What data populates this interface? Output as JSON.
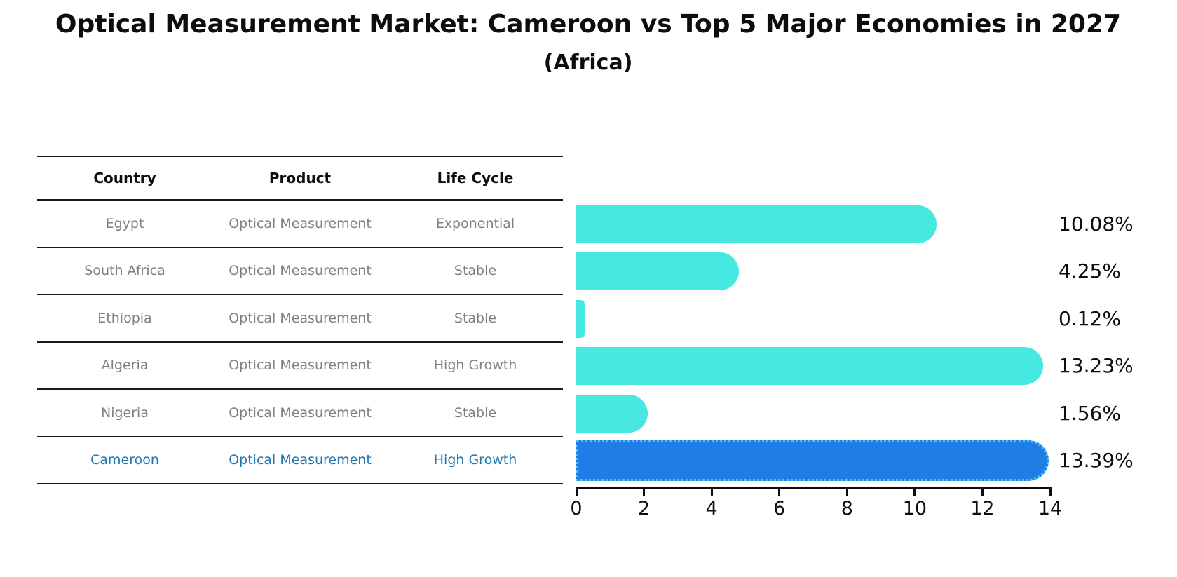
{
  "title": "Optical Measurement Market: Cameroon vs Top 5 Major Economies in 2027",
  "subtitle": "(Africa)",
  "colors": {
    "bar": "#46e8e0",
    "highlight_bar": "#1e7ee6",
    "highlight_border": "#55c0f0",
    "row_text": "#7f7f7f",
    "highlight_text": "#1f77b4",
    "rule": "#1a1a1a"
  },
  "table": {
    "headers": [
      "Country",
      "Product",
      "Life Cycle"
    ],
    "rows": [
      {
        "country": "Egypt",
        "product": "Optical Measurement",
        "life_cycle": "Exponential",
        "highlight": false
      },
      {
        "country": "South Africa",
        "product": "Optical Measurement",
        "life_cycle": "Stable",
        "highlight": false
      },
      {
        "country": "Ethiopia",
        "product": "Optical Measurement",
        "life_cycle": "Stable",
        "highlight": false
      },
      {
        "country": "Algeria",
        "product": "Optical Measurement",
        "life_cycle": "High Growth",
        "highlight": false
      },
      {
        "country": "Nigeria",
        "product": "Optical Measurement",
        "life_cycle": "Stable",
        "highlight": false
      },
      {
        "country": "Cameroon",
        "product": "Optical Measurement",
        "life_cycle": "High Growth",
        "highlight": true
      }
    ]
  },
  "chart_data": {
    "type": "bar",
    "orientation": "horizontal",
    "title": "Optical Measurement Market: Cameroon vs Top 5 Major Economies in 2027 (Africa)",
    "categories": [
      "Egypt",
      "South Africa",
      "Ethiopia",
      "Algeria",
      "Nigeria",
      "Cameroon"
    ],
    "values": [
      10.08,
      4.25,
      0.12,
      13.23,
      1.56,
      13.39
    ],
    "value_labels": [
      "10.08%",
      "4.25%",
      "0.12%",
      "13.23%",
      "1.56%",
      "13.39%"
    ],
    "highlight_index": 5,
    "xlim": [
      0,
      14
    ],
    "x_ticks": [
      0,
      2,
      4,
      6,
      8,
      10,
      12,
      14
    ],
    "grid": false,
    "legend": false
  }
}
